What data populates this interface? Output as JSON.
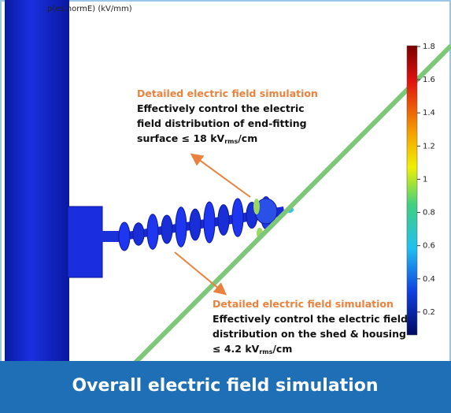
{
  "plot_label": "p(es.normE) (kV/mm)",
  "annotations": [
    {
      "title": "Detailed electric field simulation",
      "lines": [
        "Effectively control the electric",
        "field distribution of end-fitting"
      ],
      "last_line": [
        "surface ≤ 18 kV",
        "rms",
        "/cm"
      ]
    },
    {
      "title": "Detailed electric field simulation",
      "lines": [
        "Effectively control the electric field",
        "distribution on the shed & housing"
      ],
      "last_line": [
        "≤ 4.2 kV",
        "rms",
        "/cm"
      ]
    }
  ],
  "colorbar_ticks": [
    1.8,
    1.6,
    1.4,
    1.2,
    1,
    0.8,
    0.6,
    0.4,
    0.2
  ],
  "caption": "Overall electric field simulation"
}
